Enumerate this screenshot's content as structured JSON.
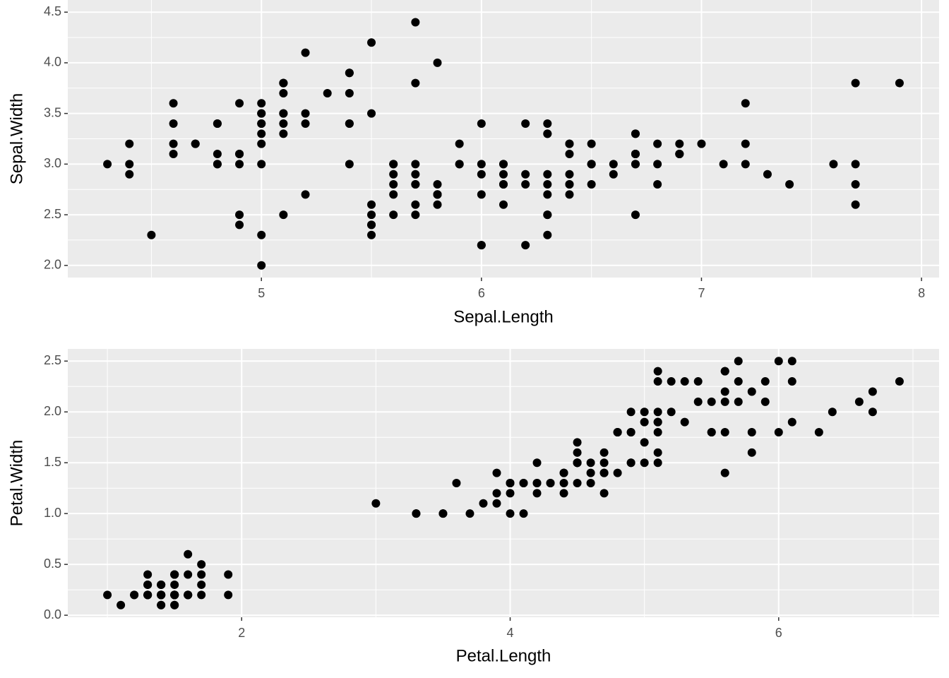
{
  "chart_data": [
    {
      "type": "scatter",
      "xlabel": "Sepal.Length",
      "ylabel": "Sepal.Width",
      "color": "#000000",
      "grid": true,
      "xlim": [
        4.12,
        8.08
      ],
      "ylim": [
        1.88,
        4.62
      ],
      "xticks": [
        5,
        6,
        7,
        8
      ],
      "xminor": [
        4.5,
        5.5,
        6.5,
        7.5
      ],
      "yticks": [
        {
          "value": 2,
          "label": "2.0"
        },
        2.5,
        {
          "value": 3,
          "label": "3.0"
        },
        3.5,
        {
          "value": 4,
          "label": "4.0"
        },
        4.5
      ],
      "yminor": [
        2.25,
        2.75,
        3.25,
        3.75,
        4.25
      ],
      "x": [
        5.1,
        4.9,
        4.7,
        4.6,
        5.0,
        5.4,
        4.6,
        5.0,
        4.4,
        4.9,
        5.4,
        4.8,
        4.8,
        4.3,
        5.8,
        5.7,
        5.4,
        5.1,
        5.7,
        5.1,
        5.4,
        5.1,
        4.6,
        5.1,
        4.8,
        5.0,
        5.0,
        5.2,
        5.2,
        4.7,
        4.8,
        5.4,
        5.2,
        5.5,
        4.9,
        5.0,
        5.5,
        4.9,
        4.4,
        5.1,
        5.0,
        4.5,
        4.4,
        5.0,
        5.1,
        4.8,
        5.1,
        4.6,
        5.3,
        5.0,
        7.0,
        6.4,
        6.9,
        5.5,
        6.5,
        5.7,
        6.3,
        4.9,
        6.6,
        5.2,
        5.0,
        5.9,
        6.0,
        6.1,
        5.6,
        6.7,
        5.6,
        5.8,
        6.2,
        5.6,
        5.9,
        6.1,
        6.3,
        6.1,
        6.4,
        6.6,
        6.8,
        6.7,
        6.0,
        5.7,
        5.5,
        5.5,
        5.8,
        6.0,
        5.4,
        6.0,
        6.7,
        6.3,
        5.6,
        5.5,
        5.5,
        6.1,
        5.8,
        5.0,
        5.6,
        5.7,
        5.7,
        6.2,
        5.1,
        5.7,
        6.3,
        5.8,
        7.1,
        6.3,
        6.5,
        7.6,
        4.9,
        7.3,
        6.7,
        7.2,
        6.5,
        6.4,
        6.8,
        5.7,
        5.8,
        6.4,
        6.5,
        7.7,
        7.7,
        6.0,
        6.9,
        5.6,
        7.7,
        6.3,
        6.7,
        7.2,
        6.2,
        6.1,
        6.4,
        7.2,
        7.4,
        7.9,
        6.4,
        6.3,
        6.1,
        7.7,
        6.3,
        6.4,
        6.0,
        6.9,
        6.7,
        6.9,
        5.8,
        6.8,
        6.7,
        6.7,
        6.3,
        6.5,
        6.2,
        5.9
      ],
      "y": [
        3.5,
        3.0,
        3.2,
        3.1,
        3.6,
        3.9,
        3.4,
        3.4,
        2.9,
        3.1,
        3.7,
        3.4,
        3.0,
        3.0,
        4.0,
        4.4,
        3.9,
        3.5,
        3.8,
        3.8,
        3.4,
        3.7,
        3.6,
        3.3,
        3.4,
        3.0,
        3.4,
        3.5,
        3.4,
        3.2,
        3.1,
        3.4,
        4.1,
        4.2,
        3.1,
        3.2,
        3.5,
        3.6,
        3.0,
        3.4,
        3.5,
        2.3,
        3.2,
        3.5,
        3.8,
        3.0,
        3.8,
        3.2,
        3.7,
        3.3,
        3.2,
        3.2,
        3.1,
        2.3,
        2.8,
        2.8,
        3.3,
        2.4,
        2.9,
        2.7,
        2.0,
        3.0,
        2.2,
        2.9,
        2.9,
        3.1,
        3.0,
        2.7,
        2.2,
        2.5,
        3.2,
        2.8,
        2.5,
        2.8,
        2.9,
        3.0,
        2.8,
        3.0,
        2.9,
        2.6,
        2.4,
        2.4,
        2.7,
        2.7,
        3.0,
        3.4,
        3.1,
        2.3,
        3.0,
        2.5,
        2.6,
        3.0,
        2.6,
        2.3,
        2.7,
        3.0,
        2.9,
        2.9,
        2.5,
        2.8,
        3.3,
        2.7,
        3.0,
        2.9,
        3.0,
        3.0,
        2.5,
        2.9,
        2.5,
        3.6,
        3.2,
        2.7,
        3.0,
        2.5,
        2.8,
        3.2,
        3.0,
        3.8,
        2.6,
        2.2,
        3.2,
        2.8,
        2.8,
        2.7,
        3.3,
        3.2,
        2.8,
        3.0,
        2.8,
        3.0,
        2.8,
        3.8,
        2.8,
        2.8,
        2.6,
        3.0,
        3.4,
        3.1,
        3.0,
        3.1,
        3.1,
        3.1,
        2.7,
        3.2,
        3.3,
        3.0,
        2.5,
        3.0,
        3.4,
        3.0
      ]
    },
    {
      "type": "scatter",
      "xlabel": "Petal.Length",
      "ylabel": "Petal.Width",
      "color": "#000000",
      "grid": true,
      "xlim": [
        0.705,
        7.195
      ],
      "ylim": [
        -0.02,
        2.62
      ],
      "xticks": [
        2,
        4,
        6
      ],
      "xminor": [
        1,
        3,
        5,
        7
      ],
      "yticks": [
        {
          "value": 0,
          "label": "0.0"
        },
        0.5,
        {
          "value": 1,
          "label": "1.0"
        },
        1.5,
        {
          "value": 2,
          "label": "2.0"
        },
        2.5
      ],
      "yminor": [
        0.25,
        0.75,
        1.25,
        1.75,
        2.25
      ],
      "x": [
        1.4,
        1.4,
        1.3,
        1.5,
        1.4,
        1.7,
        1.4,
        1.5,
        1.4,
        1.5,
        1.5,
        1.6,
        1.4,
        1.1,
        1.2,
        1.5,
        1.3,
        1.4,
        1.7,
        1.5,
        1.7,
        1.5,
        1.0,
        1.7,
        1.9,
        1.6,
        1.6,
        1.5,
        1.4,
        1.6,
        1.6,
        1.5,
        1.5,
        1.4,
        1.5,
        1.2,
        1.3,
        1.4,
        1.3,
        1.5,
        1.3,
        1.3,
        1.3,
        1.6,
        1.9,
        1.4,
        1.6,
        1.4,
        1.5,
        1.4,
        4.7,
        4.5,
        4.9,
        4.0,
        4.6,
        4.5,
        4.7,
        3.3,
        4.6,
        3.9,
        3.5,
        4.2,
        4.0,
        4.7,
        3.6,
        4.4,
        4.5,
        4.1,
        4.5,
        3.9,
        4.8,
        4.0,
        4.9,
        4.7,
        4.3,
        4.4,
        4.8,
        5.0,
        4.5,
        3.5,
        3.8,
        3.7,
        3.9,
        5.1,
        4.5,
        4.5,
        4.7,
        4.4,
        4.1,
        4.0,
        4.4,
        4.6,
        4.0,
        3.3,
        4.2,
        4.2,
        4.2,
        4.3,
        3.0,
        4.1,
        6.0,
        5.1,
        5.9,
        5.6,
        5.8,
        6.6,
        4.5,
        6.3,
        5.8,
        6.1,
        5.1,
        5.3,
        5.5,
        5.0,
        5.1,
        5.3,
        5.5,
        6.7,
        6.9,
        5.0,
        5.7,
        4.9,
        6.7,
        4.9,
        5.7,
        6.0,
        4.8,
        4.9,
        5.6,
        5.8,
        6.1,
        6.4,
        5.6,
        5.1,
        5.6,
        6.1,
        5.6,
        5.5,
        4.8,
        5.4,
        5.6,
        5.1,
        5.1,
        5.9,
        5.7,
        5.2,
        5.0,
        5.2,
        5.4,
        5.1
      ],
      "y": [
        0.2,
        0.2,
        0.2,
        0.2,
        0.2,
        0.4,
        0.3,
        0.2,
        0.2,
        0.1,
        0.2,
        0.2,
        0.1,
        0.1,
        0.2,
        0.4,
        0.4,
        0.3,
        0.3,
        0.3,
        0.2,
        0.4,
        0.2,
        0.5,
        0.2,
        0.2,
        0.4,
        0.2,
        0.2,
        0.2,
        0.2,
        0.4,
        0.1,
        0.2,
        0.2,
        0.2,
        0.2,
        0.1,
        0.2,
        0.2,
        0.3,
        0.3,
        0.2,
        0.6,
        0.4,
        0.3,
        0.2,
        0.2,
        0.2,
        0.2,
        1.4,
        1.5,
        1.5,
        1.3,
        1.5,
        1.3,
        1.6,
        1.0,
        1.3,
        1.4,
        1.0,
        1.5,
        1.0,
        1.4,
        1.3,
        1.4,
        1.5,
        1.0,
        1.5,
        1.1,
        1.8,
        1.3,
        1.5,
        1.2,
        1.3,
        1.4,
        1.4,
        1.7,
        1.5,
        1.0,
        1.1,
        1.0,
        1.2,
        1.6,
        1.5,
        1.6,
        1.5,
        1.3,
        1.3,
        1.3,
        1.2,
        1.4,
        1.2,
        1.0,
        1.3,
        1.2,
        1.3,
        1.3,
        1.1,
        1.3,
        2.5,
        1.9,
        2.1,
        1.8,
        2.2,
        2.1,
        1.7,
        1.8,
        1.8,
        2.5,
        2.0,
        1.9,
        2.1,
        2.0,
        2.4,
        2.3,
        1.8,
        2.2,
        2.3,
        1.5,
        2.3,
        2.0,
        2.0,
        1.8,
        2.1,
        1.8,
        1.8,
        1.8,
        2.1,
        1.6,
        1.9,
        2.0,
        2.2,
        1.5,
        1.4,
        2.3,
        2.4,
        1.8,
        1.8,
        2.1,
        2.4,
        2.3,
        1.9,
        2.3,
        2.5,
        2.3,
        1.9,
        2.0,
        2.3,
        1.8
      ]
    }
  ]
}
